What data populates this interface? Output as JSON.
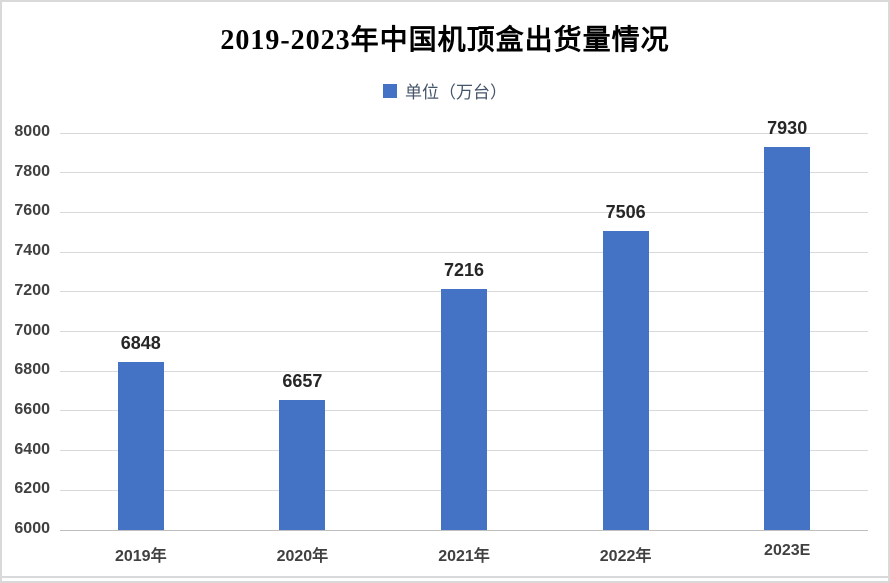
{
  "chart_data": {
    "type": "bar",
    "title": "2019-2023年中国机顶盒出货量情况",
    "legend": {
      "label": "单位（万台）",
      "position": "top"
    },
    "categories": [
      "2019年",
      "2020年",
      "2021年",
      "2022年",
      "2023E"
    ],
    "values": [
      6848,
      6657,
      7216,
      7506,
      7930
    ],
    "xlabel": "",
    "ylabel": "",
    "ylim": [
      6000,
      8000
    ],
    "ytick_step": 200,
    "grid": true,
    "colors": {
      "bar": "#4472C4",
      "grid": "#D9D9D9",
      "axis_line": "#BFBFBF",
      "axis_text": "#404040",
      "value_label": "#262626",
      "legend_text": "#44546A",
      "title_text": "#000000",
      "frame_border": "#D9D9D9"
    }
  }
}
